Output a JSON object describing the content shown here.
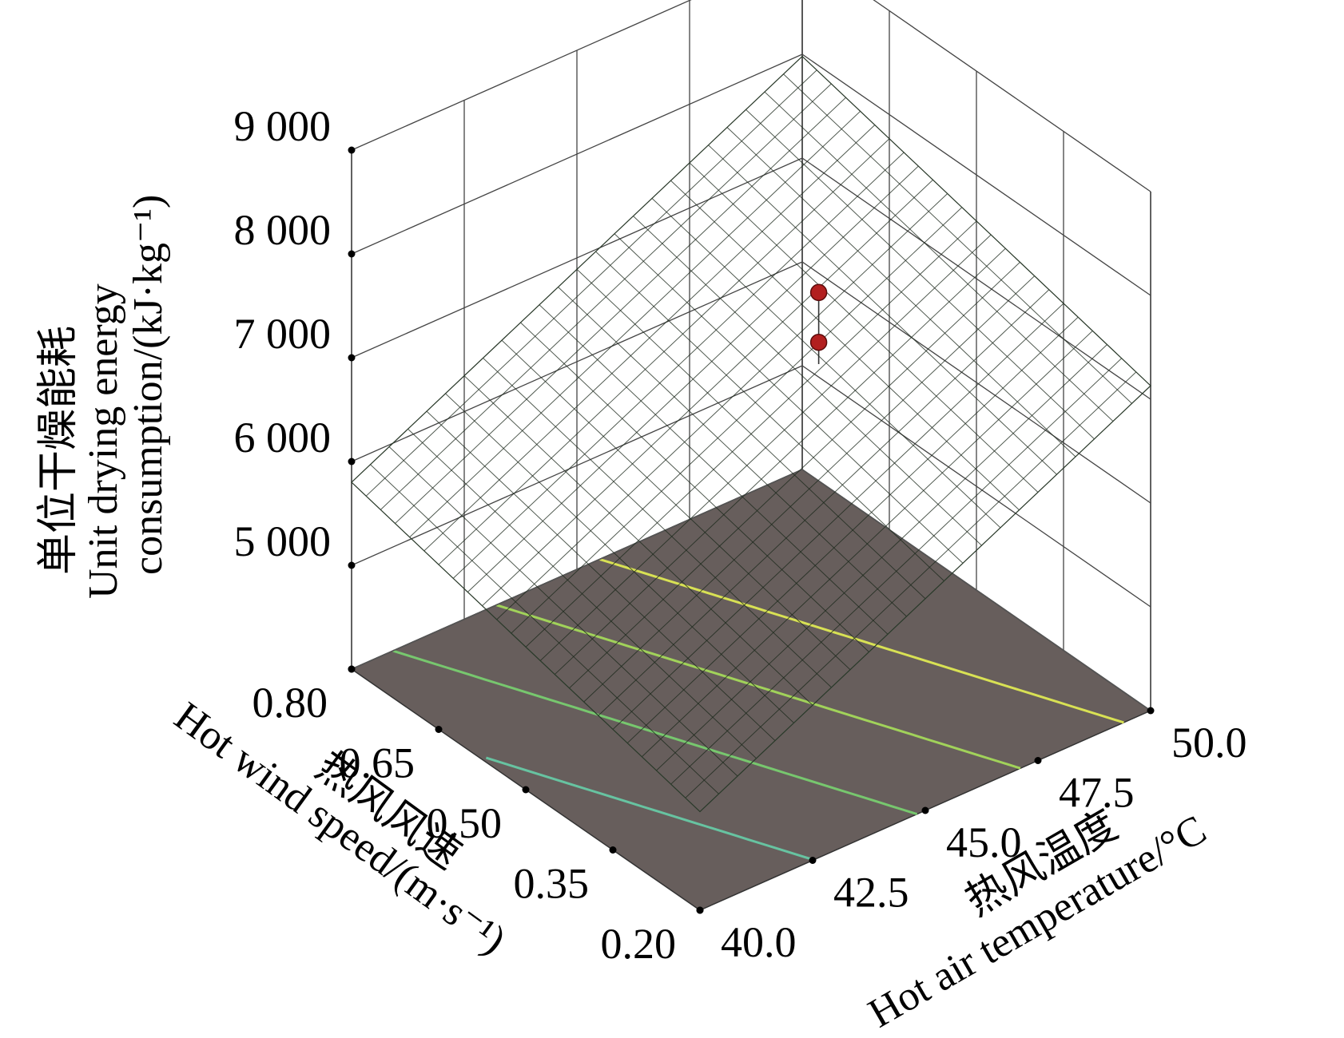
{
  "chart_data": {
    "type": "surface3d",
    "z_axis": {
      "label_lines": [
        "单位干燥能耗",
        "Unit drying energy",
        "consumption/(kJ·kg⁻¹)"
      ],
      "range": [
        4000,
        9000
      ],
      "tick_values": [
        5000,
        6000,
        7000,
        8000,
        9000
      ],
      "tick_labels": [
        "5 000",
        "6 000",
        "7 000",
        "8 000",
        "9 000"
      ]
    },
    "x_axis": {
      "label_lines": [
        "热风温度",
        "Hot air temperature/°C"
      ],
      "range": [
        40.0,
        50.0
      ],
      "tick_values": [
        40.0,
        42.5,
        45.0,
        47.5,
        50.0
      ],
      "tick_labels": [
        "40.0",
        "42.5",
        "45.0",
        "47.5",
        "50.0"
      ]
    },
    "y_axis": {
      "label_lines": [
        "热风风速",
        "Hot wind speed/(m·s⁻¹)"
      ],
      "range": [
        0.2,
        0.8
      ],
      "tick_values": [
        0.2,
        0.35,
        0.5,
        0.65,
        0.8
      ],
      "tick_labels": [
        "0.20",
        "0.35",
        "0.50",
        "0.65",
        "0.80"
      ]
    },
    "surface_corners": [
      {
        "temperature": 40.0,
        "speed": 0.2,
        "energy": 4950
      },
      {
        "temperature": 40.0,
        "speed": 0.8,
        "energy": 5800
      },
      {
        "temperature": 50.0,
        "speed": 0.2,
        "energy": 7130
      },
      {
        "temperature": 50.0,
        "speed": 0.8,
        "energy": 7980
      }
    ],
    "design_points": [
      {
        "temperature": 46.5,
        "speed": 0.5,
        "energy": 7540
      },
      {
        "temperature": 46.5,
        "speed": 0.5,
        "energy": 7060
      }
    ],
    "surface_fitted_at_design_point": 6850,
    "floor_contour_levels": [
      5500,
      6000,
      6500,
      7000
    ],
    "colormap": {
      "low": "#56bfd8",
      "mid1": "#7cc85e",
      "mid2": "#e7e552",
      "high": "#ee7840"
    },
    "floor_color": "#675e5c",
    "point_color": "#b21f1f"
  }
}
